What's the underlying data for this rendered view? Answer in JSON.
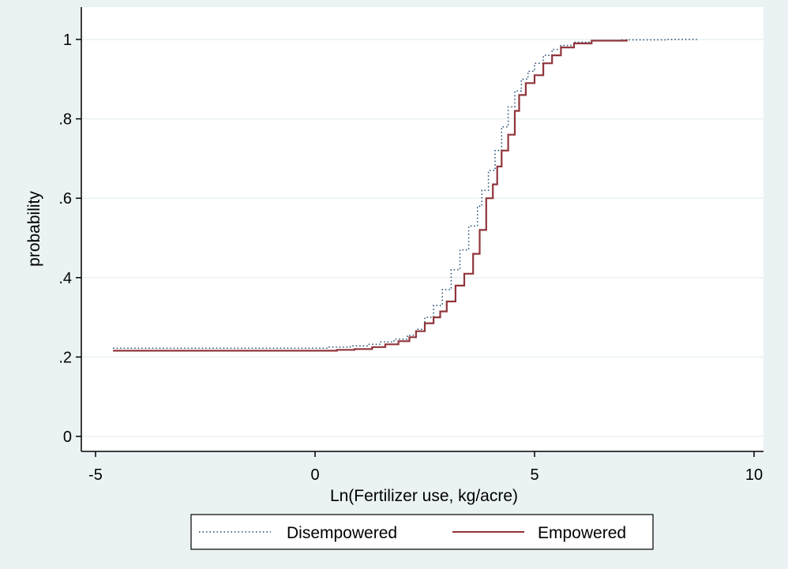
{
  "chart_data": {
    "type": "line",
    "title": "",
    "xlabel": "Ln(Fertilizer use, kg/acre)",
    "ylabel": "probability",
    "xlim": [
      -5,
      10
    ],
    "ylim": [
      0,
      1
    ],
    "x_ticks": [
      -5,
      0,
      5,
      10
    ],
    "x_tick_labels": [
      "-5",
      "0",
      "5",
      "10"
    ],
    "y_ticks": [
      0,
      0.2,
      0.4,
      0.6,
      0.8,
      1
    ],
    "y_tick_labels": [
      "0",
      ".2",
      ".4",
      ".6",
      ".8",
      "1"
    ],
    "grid": true,
    "legend_position": "bottom",
    "colors": {
      "outer_background": "#EAF2F3",
      "plot_background": "#FFFFFF",
      "grid": "#EAF2F3",
      "disempowered": "#1A476F",
      "empowered": "#90353B"
    },
    "series": [
      {
        "name": "Disempowered",
        "style": "dotted",
        "x": [
          -4.6,
          0.3,
          0.8,
          1.2,
          1.5,
          1.8,
          2.1,
          2.3,
          2.5,
          2.7,
          2.9,
          3.1,
          3.3,
          3.5,
          3.7,
          3.8,
          3.95,
          4.1,
          4.25,
          4.4,
          4.55,
          4.7,
          4.85,
          5.0,
          5.2,
          5.4,
          5.6,
          5.9,
          6.3,
          7.0,
          8.0,
          8.7
        ],
        "y": [
          0.222,
          0.225,
          0.228,
          0.232,
          0.238,
          0.245,
          0.255,
          0.27,
          0.3,
          0.33,
          0.37,
          0.42,
          0.47,
          0.53,
          0.58,
          0.62,
          0.67,
          0.72,
          0.78,
          0.83,
          0.87,
          0.9,
          0.92,
          0.94,
          0.96,
          0.975,
          0.985,
          0.993,
          0.997,
          0.999,
          1.0,
          1.0
        ]
      },
      {
        "name": "Empowered",
        "style": "solid",
        "x": [
          -4.6,
          0.0,
          0.5,
          0.9,
          1.3,
          1.6,
          1.9,
          2.15,
          2.3,
          2.5,
          2.7,
          2.85,
          3.0,
          3.2,
          3.4,
          3.6,
          3.75,
          3.9,
          4.05,
          4.15,
          4.25,
          4.4,
          4.55,
          4.65,
          4.8,
          5.0,
          5.2,
          5.4,
          5.6,
          5.9,
          6.3,
          7.1
        ],
        "y": [
          0.216,
          0.216,
          0.218,
          0.22,
          0.225,
          0.232,
          0.24,
          0.25,
          0.265,
          0.285,
          0.3,
          0.315,
          0.34,
          0.38,
          0.41,
          0.46,
          0.52,
          0.6,
          0.635,
          0.68,
          0.72,
          0.76,
          0.82,
          0.86,
          0.89,
          0.91,
          0.94,
          0.96,
          0.98,
          0.99,
          0.997,
          1.0
        ]
      }
    ]
  }
}
